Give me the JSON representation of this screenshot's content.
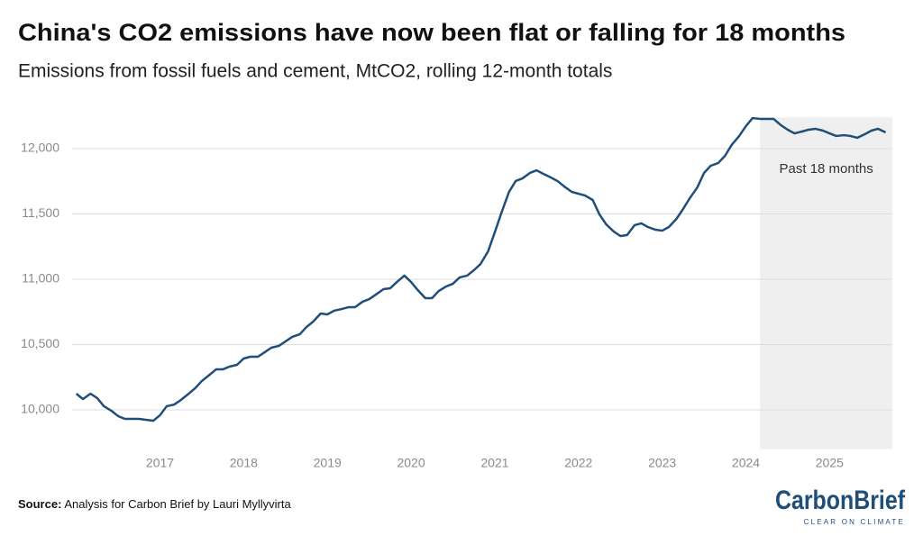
{
  "chart_data": {
    "type": "line",
    "title": "China's CO2 emissions have now been flat or falling for 18 months",
    "subtitle": "Emissions from fossil fuels and cement, MtCO2, rolling 12-month totals",
    "x": [
      2016,
      2016.08,
      2016.17,
      2016.25,
      2016.33,
      2016.42,
      2016.5,
      2016.58,
      2016.67,
      2016.75,
      2016.83,
      2016.92,
      2017,
      2017.08,
      2017.17,
      2017.25,
      2017.33,
      2017.42,
      2017.5,
      2017.58,
      2017.67,
      2017.75,
      2017.83,
      2017.92,
      2018,
      2018.08,
      2018.17,
      2018.25,
      2018.33,
      2018.42,
      2018.5,
      2018.58,
      2018.67,
      2018.75,
      2018.83,
      2018.92,
      2019,
      2019.08,
      2019.17,
      2019.25,
      2019.33,
      2019.42,
      2019.5,
      2019.58,
      2019.67,
      2019.75,
      2019.83,
      2019.92,
      2020,
      2020.08,
      2020.17,
      2020.25,
      2020.33,
      2020.42,
      2020.5,
      2020.58,
      2020.67,
      2020.75,
      2020.83,
      2020.92,
      2021,
      2021.08,
      2021.17,
      2021.25,
      2021.33,
      2021.42,
      2021.5,
      2021.58,
      2021.67,
      2021.75,
      2021.83,
      2021.92,
      2022,
      2022.08,
      2022.17,
      2022.25,
      2022.33,
      2022.42,
      2022.5,
      2022.58,
      2022.67,
      2022.75,
      2022.83,
      2022.92,
      2023,
      2023.08,
      2023.17,
      2023.25,
      2023.33,
      2023.42,
      2023.5,
      2023.58,
      2023.67,
      2023.75,
      2023.83,
      2023.92,
      2024,
      2024.08,
      2024.17,
      2024.25,
      2024.33,
      2024.42,
      2024.5,
      2024.58,
      2024.67,
      2024.75,
      2024.83,
      2024.92,
      2025,
      2025.08,
      2025.17,
      2025.25,
      2025.33,
      2025.42,
      2025.5,
      2025.58,
      2025.67
    ],
    "series": [
      {
        "color": "#1f4e79",
        "values": [
          10124,
          10083,
          10124,
          10090,
          10028,
          9993,
          9952,
          9931,
          9931,
          9931,
          9924,
          9917,
          9959,
          10028,
          10041,
          10076,
          10117,
          10166,
          10221,
          10262,
          10310,
          10310,
          10331,
          10345,
          10393,
          10407,
          10407,
          10441,
          10476,
          10490,
          10524,
          10559,
          10579,
          10634,
          10676,
          10738,
          10731,
          10759,
          10772,
          10786,
          10786,
          10828,
          10848,
          10883,
          10924,
          10931,
          10979,
          11028,
          10979,
          10917,
          10855,
          10855,
          10910,
          10945,
          10966,
          11014,
          11028,
          11069,
          11117,
          11214,
          11359,
          11510,
          11669,
          11752,
          11772,
          11814,
          11834,
          11807,
          11779,
          11752,
          11710,
          11669,
          11655,
          11641,
          11607,
          11497,
          11421,
          11366,
          11331,
          11338,
          11414,
          11428,
          11400,
          11379,
          11372,
          11400,
          11462,
          11538,
          11621,
          11703,
          11814,
          11869,
          11890,
          11945,
          12028,
          12097,
          12172,
          12234,
          12228,
          12228,
          12228,
          12179,
          12145,
          12117,
          12131,
          12145,
          12152,
          12138,
          12117,
          12097,
          12103,
          12097,
          12083,
          12110,
          12138,
          12152,
          12124
        ]
      }
    ],
    "xlim": [
      2015.95,
      2025.75
    ],
    "xticks": [
      2017,
      2018,
      2019,
      2020,
      2021,
      2022,
      2023,
      2024,
      2025
    ],
    "ylim": [
      9700,
      12260
    ],
    "yticks": [
      {
        "value": 10000,
        "label": "10,000"
      },
      {
        "value": 10500,
        "label": "10,500"
      },
      {
        "value": 11000,
        "label": "11,000"
      },
      {
        "value": 11500,
        "label": "11,500"
      },
      {
        "value": 12000,
        "label": "12,000"
      }
    ],
    "grid": true,
    "highlight": {
      "label": "Past 18 months",
      "x": [
        2024.17,
        2025.75
      ]
    },
    "source_label": "Source:",
    "source": "Analysis for Carbon Brief by Lauri Myllyvirta",
    "logo": {
      "name": "CarbonBrief",
      "tagline": "CLEAR ON CLIMATE"
    }
  }
}
